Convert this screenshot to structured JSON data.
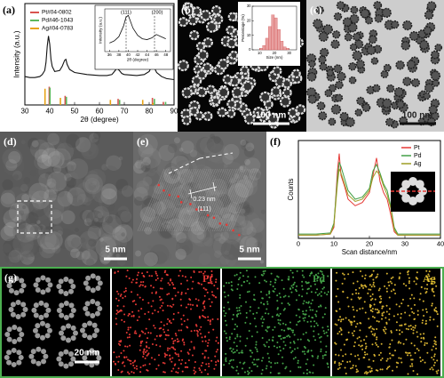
{
  "panels": {
    "a": {
      "label": "(a)",
      "chart_data": {
        "type": "line",
        "xlabel": "2θ (degree)",
        "ylabel": "Intensity (a.u.)",
        "xlim": [
          30,
          90
        ],
        "xticks": [
          30,
          40,
          50,
          60,
          70,
          80,
          90
        ],
        "ylim": [
          0,
          100
        ],
        "color": "#111111",
        "x": [
          30,
          32,
          34,
          36,
          37,
          38,
          38.5,
          39,
          39.5,
          40,
          40.5,
          41,
          42,
          44,
          45,
          46,
          46.5,
          47,
          48,
          50,
          55,
          60,
          63,
          65,
          66,
          67,
          68,
          69,
          70,
          75,
          78,
          80,
          81,
          81.5,
          82,
          83,
          85,
          87,
          90
        ],
        "values": [
          28,
          27,
          27,
          28,
          30,
          34,
          42,
          58,
          68,
          60,
          45,
          38,
          33,
          34,
          38,
          44,
          45,
          40,
          35,
          32,
          30,
          29,
          29,
          30,
          33,
          36,
          34,
          31,
          30,
          29,
          30,
          33,
          38,
          40,
          37,
          32,
          28,
          26,
          25
        ],
        "references": [
          {
            "name": "Pt#04-0802",
            "color": "#d9534f",
            "x": [
              39.8,
              46.2,
              67.5,
              81.3,
              85.7
            ],
            "values": [
              18,
              9,
              6,
              7,
              3
            ]
          },
          {
            "name": "Pd#46-1043",
            "color": "#5cb85c",
            "x": [
              40.1,
              46.7,
              68.1,
              82.1,
              86.6
            ],
            "values": [
              17,
              8,
              5,
              6,
              3
            ]
          },
          {
            "name": "Ag#04-0783",
            "color": "#e8a317",
            "x": [
              38.1,
              44.3,
              64.4,
              77.4,
              81.5
            ],
            "values": [
              16,
              7,
              5,
              5,
              2
            ]
          }
        ],
        "inset": {
          "type": "line",
          "xlabel": "2θ (degree)",
          "ylabel": "Intensity (a.u.)",
          "xlim": [
            35,
            49
          ],
          "xticks": [
            36,
            38,
            40,
            42,
            44,
            46,
            48
          ],
          "ylim": [
            0,
            100
          ],
          "color": "#111111",
          "x": [
            36,
            37,
            38,
            39,
            39.5,
            40,
            40.5,
            41,
            42,
            43,
            44,
            45,
            46,
            47,
            48
          ],
          "values": [
            20,
            25,
            35,
            60,
            80,
            85,
            70,
            55,
            38,
            30,
            28,
            32,
            40,
            35,
            30
          ],
          "annotations": [
            "(111)",
            "(200)"
          ]
        }
      }
    },
    "b": {
      "label": "(b)",
      "scale_bar": "100 nm",
      "inset": {
        "type": "histogram",
        "xlabel": "Size (nm)",
        "ylabel": "Percentage (%)",
        "xlim": [
          5,
          35
        ],
        "xticks": [
          10,
          20,
          30
        ],
        "ylim": [
          0,
          30
        ],
        "yticks": [
          0,
          10,
          20,
          30
        ],
        "color": "#e8a0a0",
        "bins": [
          10,
          12,
          14,
          16,
          18,
          20,
          22,
          24,
          26,
          28,
          30
        ],
        "values": [
          1,
          3,
          8,
          16,
          24,
          22,
          14,
          6,
          2,
          1
        ]
      }
    },
    "c": {
      "label": "(c)",
      "scale_bar": "100 nm"
    },
    "d": {
      "label": "(d)",
      "scale_bar": "5 nm"
    },
    "e": {
      "label": "(e)",
      "scale_bar": "5 nm",
      "spacing": "0.23 nm",
      "plane": "(111)"
    },
    "f": {
      "label": "(f)",
      "chart_data": {
        "type": "line",
        "xlabel": "Scan distance/nm",
        "ylabel": "Counts",
        "xlim": [
          0,
          40
        ],
        "xticks": [
          0,
          10,
          20,
          30,
          40
        ],
        "ylim": [
          0,
          90
        ],
        "x": [
          0,
          5,
          9,
          10,
          11,
          11.5,
          12,
          13,
          14,
          16,
          18,
          20,
          21,
          22,
          23,
          24,
          25,
          26,
          27,
          28,
          30,
          35,
          40
        ],
        "series": [
          {
            "name": "Pt",
            "color": "#e53935",
            "values": [
              3,
              3,
              4,
              10,
              62,
              78,
              58,
              48,
              36,
              30,
              33,
              42,
              58,
              74,
              52,
              42,
              36,
              22,
              6,
              3,
              3,
              3,
              3
            ]
          },
          {
            "name": "Pd",
            "color": "#43a047",
            "values": [
              4,
              4,
              5,
              14,
              55,
              70,
              66,
              55,
              44,
              36,
              38,
              46,
              62,
              68,
              60,
              50,
              44,
              30,
              10,
              4,
              4,
              4,
              4
            ]
          },
          {
            "name": "Ag",
            "color": "#9e9d24",
            "values": [
              3,
              3,
              4,
              12,
              50,
              64,
              60,
              50,
              40,
              34,
              36,
              44,
              56,
              62,
              58,
              48,
              40,
              28,
              8,
              3,
              3,
              3,
              3
            ]
          }
        ]
      }
    },
    "g": {
      "label": "(g)",
      "scale_bar": "20 nm",
      "maps": [
        "Pt",
        "Pd",
        "Ag"
      ]
    }
  }
}
